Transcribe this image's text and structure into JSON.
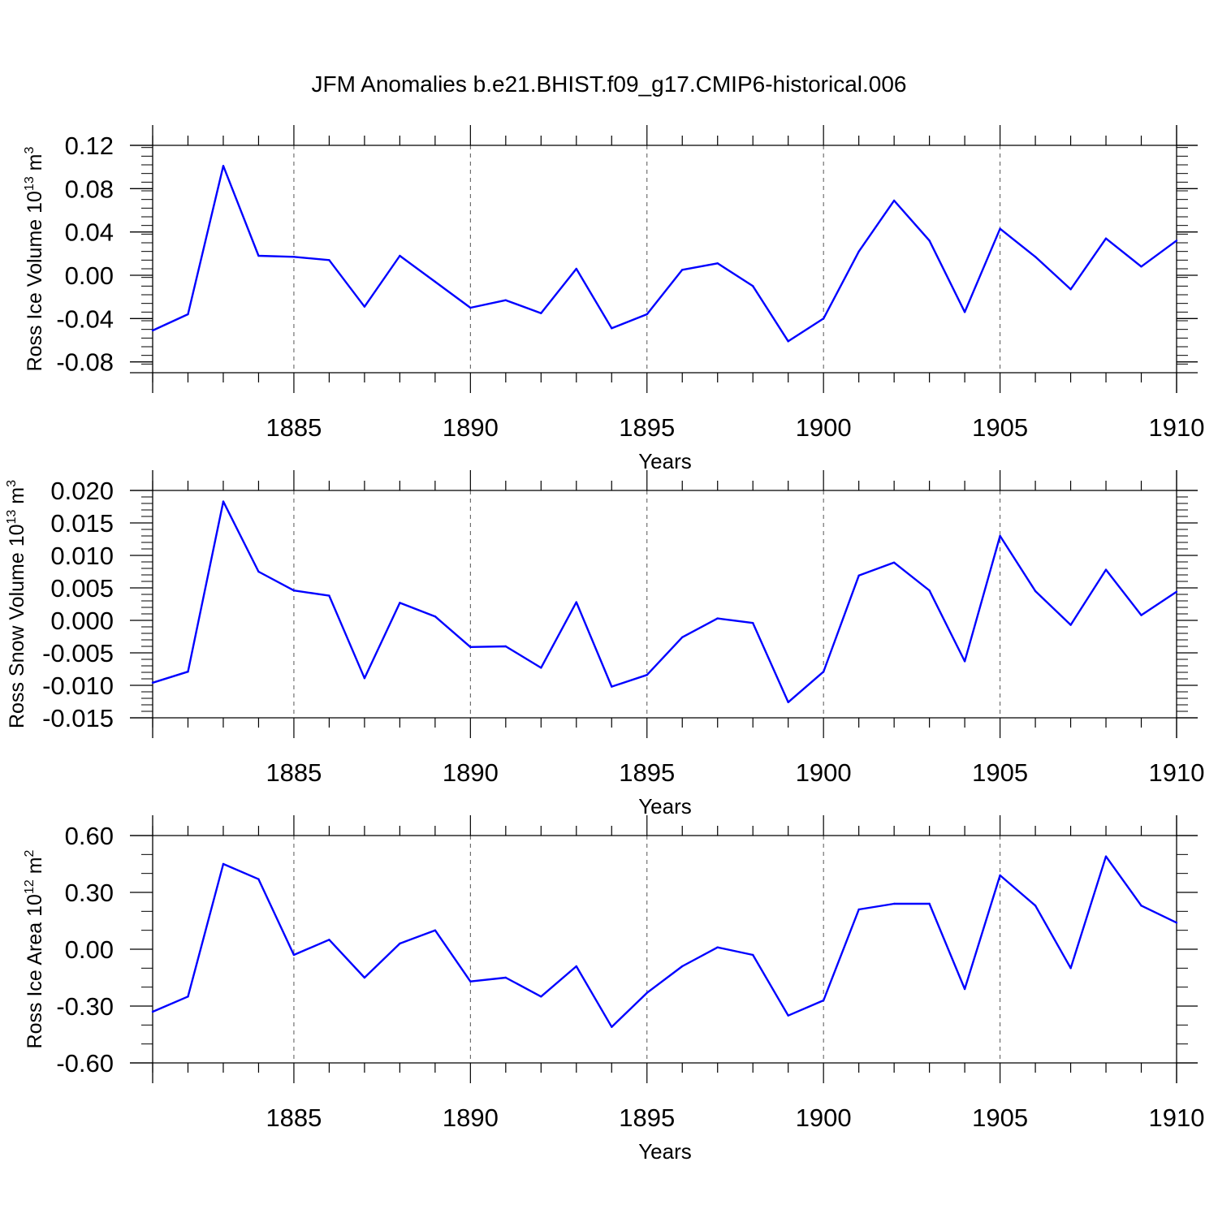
{
  "title": "JFM Anomalies b.e21.BHIST.f09_g17.CMIP6-historical.006",
  "colors": {
    "line": "#0000ff",
    "axis": "#000000",
    "grid": "#555555"
  },
  "chart_data": [
    {
      "type": "line",
      "title": "",
      "xlabel": "Years",
      "ylabel": "Ross Ice Volume 10",
      "ylabel_exp": "13",
      "ylabel_unit": " m",
      "ylabel_unit_exp": "3",
      "xlim": [
        1881,
        1910
      ],
      "ylim": [
        -0.09,
        0.12
      ],
      "xticks": [
        1885,
        1890,
        1895,
        1900,
        1905,
        1910
      ],
      "yticks": [
        -0.08,
        -0.04,
        0.0,
        0.04,
        0.08,
        0.12
      ],
      "ytick_labels": [
        "-0.08",
        "-0.04",
        "0.00",
        "0.04",
        "0.08",
        "0.12"
      ],
      "y_minor_step": 0.008,
      "grid": "vertical dashed at major x ticks",
      "x": [
        1881,
        1882,
        1883,
        1884,
        1885,
        1886,
        1887,
        1888,
        1889,
        1890,
        1891,
        1892,
        1893,
        1894,
        1895,
        1896,
        1897,
        1898,
        1899,
        1900,
        1901,
        1902,
        1903,
        1904,
        1905,
        1906,
        1907,
        1908,
        1909,
        1910
      ],
      "series": [
        {
          "values": [
            -0.051,
            -0.036,
            0.101,
            0.018,
            0.017,
            0.014,
            -0.029,
            0.018,
            -0.006,
            -0.03,
            -0.023,
            -0.035,
            0.006,
            -0.049,
            -0.036,
            0.005,
            0.011,
            -0.01,
            -0.061,
            -0.04,
            0.022,
            0.069,
            0.032,
            -0.034,
            0.043,
            0.017,
            -0.013,
            0.034,
            0.008,
            0.032
          ]
        }
      ]
    },
    {
      "type": "line",
      "title": "",
      "xlabel": "Years",
      "ylabel": "Ross Snow Volume 10",
      "ylabel_exp": "13",
      "ylabel_unit": " m",
      "ylabel_unit_exp": "3",
      "xlim": [
        1881,
        1910
      ],
      "ylim": [
        -0.015,
        0.02
      ],
      "xticks": [
        1885,
        1890,
        1895,
        1900,
        1905,
        1910
      ],
      "yticks": [
        -0.015,
        -0.01,
        -0.005,
        0.0,
        0.005,
        0.01,
        0.015,
        0.02
      ],
      "ytick_labels": [
        "-0.015",
        "-0.010",
        "-0.005",
        "0.000",
        "0.005",
        "0.010",
        "0.015",
        "0.020"
      ],
      "y_minor_step": 0.001,
      "grid": "vertical dashed at major x ticks",
      "x": [
        1881,
        1882,
        1883,
        1884,
        1885,
        1886,
        1887,
        1888,
        1889,
        1890,
        1891,
        1892,
        1893,
        1894,
        1895,
        1896,
        1897,
        1898,
        1899,
        1900,
        1901,
        1902,
        1903,
        1904,
        1905,
        1906,
        1907,
        1908,
        1909,
        1910
      ],
      "series": [
        {
          "values": [
            -0.0096,
            -0.0079,
            0.0183,
            0.0075,
            0.0046,
            0.0038,
            -0.0089,
            0.0027,
            0.0006,
            -0.0041,
            -0.004,
            -0.0073,
            0.0028,
            -0.0102,
            -0.0084,
            -0.0026,
            0.0003,
            -0.0004,
            -0.0126,
            -0.0079,
            0.0069,
            0.0089,
            0.0046,
            -0.0063,
            0.013,
            0.0045,
            -0.0007,
            0.0078,
            0.0008,
            0.0044
          ]
        }
      ]
    },
    {
      "type": "line",
      "title": "",
      "xlabel": "Years",
      "ylabel": "Ross Ice Area 10",
      "ylabel_exp": "12",
      "ylabel_unit": " m",
      "ylabel_unit_exp": "2",
      "xlim": [
        1881,
        1910
      ],
      "ylim": [
        -0.6,
        0.6
      ],
      "xticks": [
        1885,
        1890,
        1895,
        1900,
        1905,
        1910
      ],
      "yticks": [
        -0.6,
        -0.3,
        0.0,
        0.3,
        0.6
      ],
      "ytick_labels": [
        "-0.60",
        "-0.30",
        "0.00",
        "0.30",
        "0.60"
      ],
      "y_minor_step": 0.1,
      "grid": "vertical dashed at major x ticks",
      "x": [
        1881,
        1882,
        1883,
        1884,
        1885,
        1886,
        1887,
        1888,
        1889,
        1890,
        1891,
        1892,
        1893,
        1894,
        1895,
        1896,
        1897,
        1898,
        1899,
        1900,
        1901,
        1902,
        1903,
        1904,
        1905,
        1906,
        1907,
        1908,
        1909,
        1910
      ],
      "series": [
        {
          "values": [
            -0.33,
            -0.25,
            0.45,
            0.37,
            -0.03,
            0.05,
            -0.15,
            0.03,
            0.1,
            -0.17,
            -0.15,
            -0.25,
            -0.09,
            -0.41,
            -0.23,
            -0.09,
            0.01,
            -0.03,
            -0.35,
            -0.27,
            0.21,
            0.24,
            0.24,
            -0.21,
            0.39,
            0.23,
            -0.1,
            0.49,
            0.23,
            0.14
          ]
        }
      ]
    }
  ]
}
